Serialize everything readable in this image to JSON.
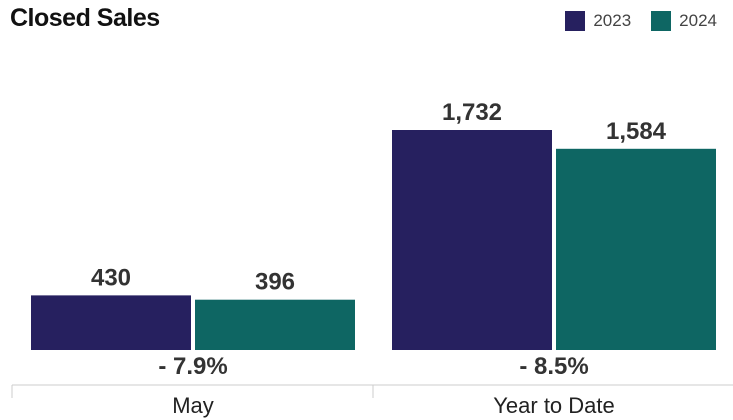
{
  "chart_data": {
    "type": "bar",
    "title": "Closed Sales",
    "categories": [
      "May",
      "Year to Date"
    ],
    "series": [
      {
        "name": "2023",
        "values": [
          430,
          1732
        ],
        "labels": [
          "430",
          "1,732"
        ],
        "color": "#26205f"
      },
      {
        "name": "2024",
        "values": [
          396,
          1584
        ],
        "labels": [
          "396",
          "1,584"
        ],
        "color": "#0e6663"
      }
    ],
    "changes": [
      "- 7.9%",
      "- 8.5%"
    ],
    "xlabel": "",
    "ylabel": "",
    "ylim": [
      0,
      1732
    ],
    "grid": false,
    "legend": "top-right"
  }
}
